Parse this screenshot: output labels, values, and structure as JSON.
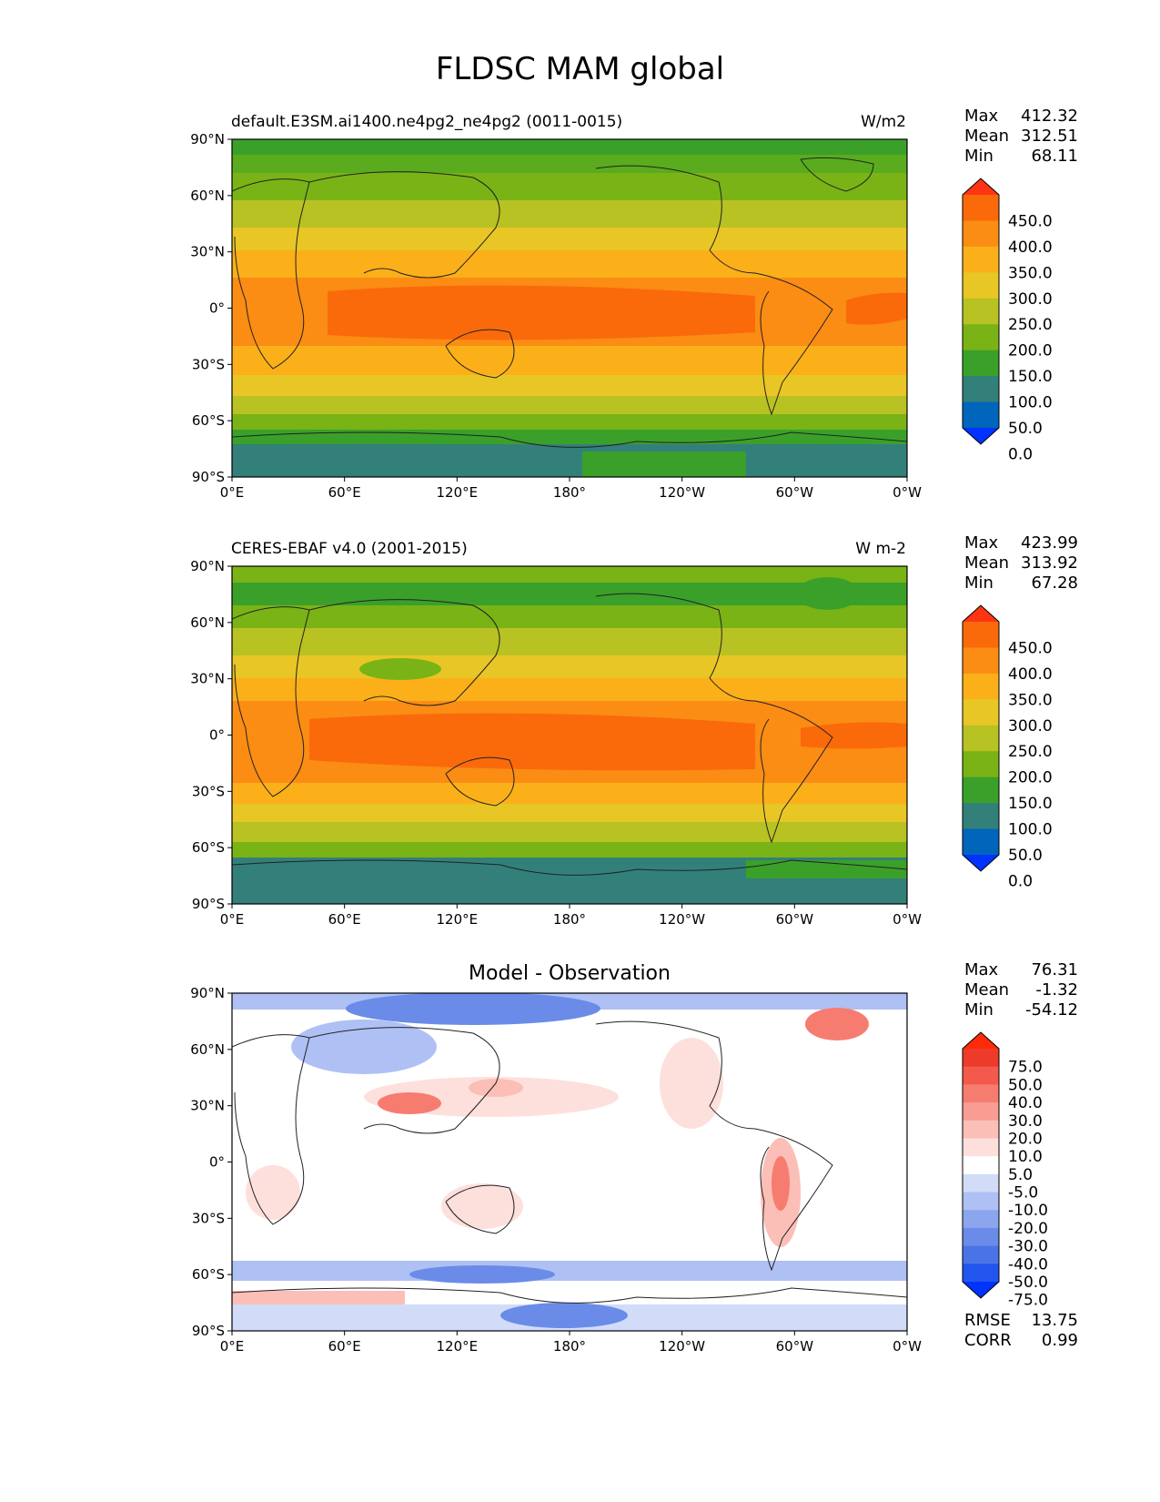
{
  "title": "FLDSC MAM global",
  "lat_ticks": [
    "90°N",
    "60°N",
    "30°N",
    "0°",
    "30°S",
    "60°S",
    "90°S"
  ],
  "lon_ticks": [
    "0°E",
    "60°E",
    "120°E",
    "180°",
    "120°W",
    "60°W",
    "0°W"
  ],
  "panels": [
    {
      "left_title": "default.E3SM.ai1400.ne4pg2_ne4pg2 (0011-0015)",
      "right_title": "W/m2",
      "center_title": "",
      "stats": {
        "max_label": "Max",
        "max": "412.32",
        "mean_label": "Mean",
        "mean": "312.51",
        "min_label": "Min",
        "min": "68.11"
      },
      "colorbar_labels": [
        "450.0",
        "400.0",
        "350.0",
        "300.0",
        "250.0",
        "200.0",
        "150.0",
        "100.0",
        "50.0",
        "0.0"
      ],
      "colorbar_colors": [
        "#0033ff",
        "#0066bb",
        "#33807a",
        "#3aa02a",
        "#7ab316",
        "#b8c223",
        "#e8c625",
        "#fbb01a",
        "#fb8c14",
        "#fa6a0a",
        "#fe3512"
      ]
    },
    {
      "left_title": "CERES-EBAF v4.0 (2001-2015)",
      "right_title": "W m-2",
      "center_title": "",
      "stats": {
        "max_label": "Max",
        "max": "423.99",
        "mean_label": "Mean",
        "mean": "313.92",
        "min_label": "Min",
        "min": "67.28"
      },
      "colorbar_labels": [
        "450.0",
        "400.0",
        "350.0",
        "300.0",
        "250.0",
        "200.0",
        "150.0",
        "100.0",
        "50.0",
        "0.0"
      ],
      "colorbar_colors": [
        "#0033ff",
        "#0066bb",
        "#33807a",
        "#3aa02a",
        "#7ab316",
        "#b8c223",
        "#e8c625",
        "#fbb01a",
        "#fb8c14",
        "#fa6a0a",
        "#fe3512"
      ]
    },
    {
      "left_title": "",
      "right_title": "",
      "center_title": "Model - Observation",
      "stats": {
        "max_label": "Max",
        "max": "76.31",
        "mean_label": "Mean",
        "mean": "-1.32",
        "min_label": "Min",
        "min": "-54.12"
      },
      "colorbar_labels": [
        "75.0",
        "50.0",
        "40.0",
        "30.0",
        "20.0",
        "10.0",
        "5.0",
        "-5.0",
        "-10.0",
        "-20.0",
        "-30.0",
        "-40.0",
        "-50.0",
        "-75.0"
      ],
      "colorbar_colors": [
        "#0033ff",
        "#2255ee",
        "#4a74e6",
        "#6a8ce8",
        "#8ca6ee",
        "#afc0f4",
        "#d2dcf9",
        "#ffffff",
        "#fde0dc",
        "#fbbfb7",
        "#f99d93",
        "#f77c70",
        "#f35a4c",
        "#ee3a2a",
        "#ff2a0a"
      ],
      "metrics": {
        "rmse_label": "RMSE",
        "rmse": "13.75",
        "corr_label": "CORR",
        "corr": "0.99"
      }
    }
  ]
}
